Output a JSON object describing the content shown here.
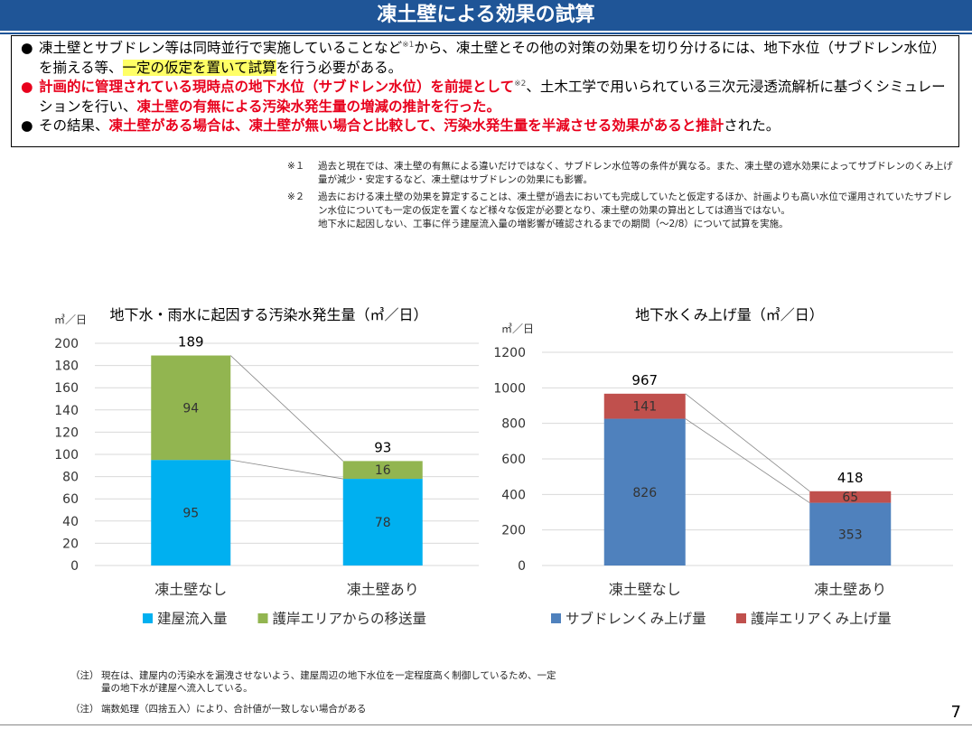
{
  "header": {
    "title": "凍土壁による効果の試算"
  },
  "summary": {
    "bullet": "●",
    "b1_part1": "凍土壁とサブドレン等は同時並行で実施していることなど",
    "b1_sup": "※1",
    "b1_part2": "から、凍土壁とその他の対策の効果を切り分けるには、地下水位（サブドレン水位）を揃える等、",
    "b1_highlight": "一定の仮定を置いて試算",
    "b1_part3": "を行う必要がある。",
    "b2_red1": "計画的に管理されている現時点の地下水位（サブドレン水位）を前提として",
    "b2_sup": "※2",
    "b2_part2": "、土木工学で用いられている三次元浸透流解析に基づくシミュレーションを行い、",
    "b2_red2": "凍土壁の有無による汚染水発生量の増減の推計を行った。",
    "b3_part1": "その結果、",
    "b3_red": "凍土壁がある場合は、凍土壁が無い場合と比較して、汚染水発生量を半減させる効果があると推計",
    "b3_part2": "された。"
  },
  "notes": {
    "n1_mark": "※１",
    "n1_text": "過去と現在では、凍土壁の有無による違いだけではなく、サブドレン水位等の条件が異なる。また、凍土壁の遮水効果によってサブドレンのくみ上げ量が減少・安定するなど、凍土壁はサブドレンの効果にも影響。",
    "n2_mark": "※２",
    "n2_text": "過去における凍土壁の効果を算定することは、凍土壁が過去においても完成していたと仮定するほか、計画よりも高い水位で運用されていたサブドレン水位についても一定の仮定を置くなど様々な仮定が必要となり、凍土壁の効果の算出としては適当ではない。",
    "n3_text": "地下水に起因しない、工事に伴う建屋流入量の増影響が確認されるまでの期間（～2/8）について試算を実施。"
  },
  "chart_data": [
    {
      "type": "bar",
      "stacked": true,
      "title": "地下水・雨水に起因する汚染水発生量（㎥／日）",
      "ylabel": "㎥／日",
      "ylim": [
        0,
        200
      ],
      "yticks": [
        0,
        20,
        40,
        60,
        80,
        100,
        120,
        140,
        160,
        180,
        200
      ],
      "categories": [
        "凍土壁なし",
        "凍土壁あり"
      ],
      "series": [
        {
          "name": "建屋流入量",
          "values": [
            95,
            78
          ],
          "color": "#00b0f0"
        },
        {
          "name": "護岸エリアからの移送量",
          "values": [
            94,
            16
          ],
          "color": "#92b550"
        }
      ],
      "totals": [
        189,
        93
      ],
      "grid": true,
      "legend": "bottom"
    },
    {
      "type": "bar",
      "stacked": true,
      "title": "地下水くみ上げ量（㎥／日）",
      "ylabel": "㎥／日",
      "ylim": [
        0,
        1200
      ],
      "yticks": [
        0,
        200,
        400,
        600,
        800,
        1000,
        1200
      ],
      "categories": [
        "凍土壁なし",
        "凍土壁あり"
      ],
      "series": [
        {
          "name": "サブドレンくみ上げ量",
          "values": [
            826,
            353
          ],
          "color": "#4f81bd"
        },
        {
          "name": "護岸エリアくみ上げ量",
          "values": [
            141,
            65
          ],
          "color": "#c0504d"
        }
      ],
      "totals": [
        967,
        418
      ],
      "grid": true,
      "legend": "bottom"
    }
  ],
  "footnotes": {
    "f1_mark": "（注）",
    "f1_text": "現在は、建屋内の汚染水を漏洩させないよう、建屋周辺の地下水位を一定程度高く制御しているため、一定量の地下水が建屋へ流入している。",
    "f2_mark": "（注）",
    "f2_text": "端数処理（四捨五入）により、合計値が一致しない場合がある"
  },
  "page": {
    "number": "7"
  }
}
